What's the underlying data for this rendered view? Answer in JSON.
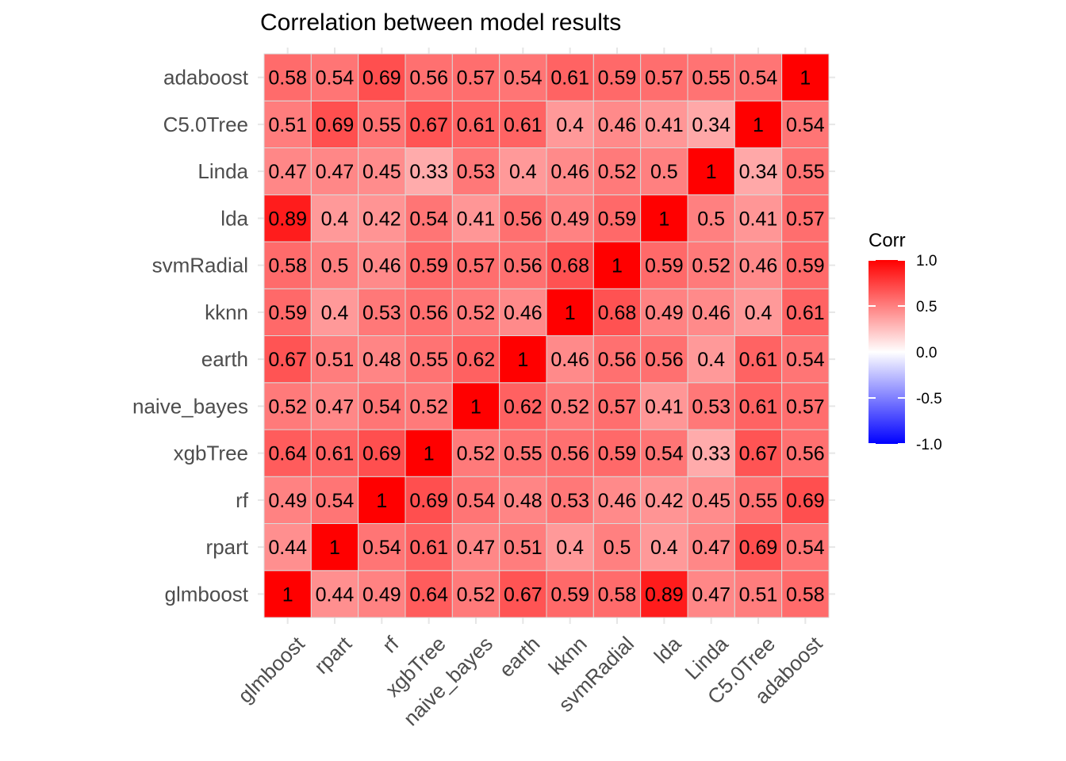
{
  "chart_data": {
    "type": "heatmap",
    "title": "Correlation between model results",
    "variables": [
      "glmboost",
      "rpart",
      "rf",
      "xgbTree",
      "naive_bayes",
      "earth",
      "kknn",
      "svmRadial",
      "lda",
      "Linda",
      "C5.0Tree",
      "adaboost"
    ],
    "matrix": [
      [
        1,
        0.44,
        0.49,
        0.64,
        0.52,
        0.67,
        0.59,
        0.58,
        0.89,
        0.47,
        0.51,
        0.58
      ],
      [
        0.44,
        1,
        0.54,
        0.61,
        0.47,
        0.51,
        0.4,
        0.5,
        0.4,
        0.47,
        0.69,
        0.54
      ],
      [
        0.49,
        0.54,
        1,
        0.69,
        0.54,
        0.48,
        0.53,
        0.46,
        0.42,
        0.45,
        0.55,
        0.69
      ],
      [
        0.64,
        0.61,
        0.69,
        1,
        0.52,
        0.55,
        0.56,
        0.59,
        0.54,
        0.33,
        0.67,
        0.56
      ],
      [
        0.52,
        0.47,
        0.54,
        0.52,
        1,
        0.62,
        0.52,
        0.57,
        0.41,
        0.53,
        0.61,
        0.57
      ],
      [
        0.67,
        0.51,
        0.48,
        0.55,
        0.62,
        1,
        0.46,
        0.56,
        0.56,
        0.4,
        0.61,
        0.54
      ],
      [
        0.59,
        0.4,
        0.53,
        0.56,
        0.52,
        0.46,
        1,
        0.68,
        0.49,
        0.46,
        0.4,
        0.61
      ],
      [
        0.58,
        0.5,
        0.46,
        0.59,
        0.57,
        0.56,
        0.68,
        1,
        0.59,
        0.52,
        0.46,
        0.59
      ],
      [
        0.89,
        0.4,
        0.42,
        0.54,
        0.41,
        0.56,
        0.49,
        0.59,
        1,
        0.5,
        0.41,
        0.57
      ],
      [
        0.47,
        0.47,
        0.45,
        0.33,
        0.53,
        0.4,
        0.46,
        0.52,
        0.5,
        1,
        0.34,
        0.55
      ],
      [
        0.51,
        0.69,
        0.55,
        0.67,
        0.61,
        0.61,
        0.4,
        0.46,
        0.41,
        0.34,
        1,
        0.54
      ],
      [
        0.58,
        0.54,
        0.69,
        0.56,
        0.57,
        0.54,
        0.61,
        0.59,
        0.57,
        0.55,
        0.54,
        1
      ]
    ],
    "labels": [
      [
        "1",
        "0.44",
        "0.49",
        "0.64",
        "0.52",
        "0.67",
        "0.59",
        "0.58",
        "0.89",
        "0.47",
        "0.51",
        "0.58"
      ],
      [
        "0.44",
        "1",
        "0.54",
        "0.61",
        "0.47",
        "0.51",
        "0.4",
        "0.5",
        "0.4",
        "0.47",
        "0.69",
        "0.54"
      ],
      [
        "0.49",
        "0.54",
        "1",
        "0.69",
        "0.54",
        "0.48",
        "0.53",
        "0.46",
        "0.42",
        "0.45",
        "0.55",
        "0.69"
      ],
      [
        "0.64",
        "0.61",
        "0.69",
        "1",
        "0.52",
        "0.55",
        "0.56",
        "0.59",
        "0.54",
        "0.33",
        "0.67",
        "0.56"
      ],
      [
        "0.52",
        "0.47",
        "0.54",
        "0.52",
        "1",
        "0.62",
        "0.52",
        "0.57",
        "0.41",
        "0.53",
        "0.61",
        "0.57"
      ],
      [
        "0.67",
        "0.51",
        "0.48",
        "0.55",
        "0.62",
        "1",
        "0.46",
        "0.56",
        "0.56",
        "0.4",
        "0.61",
        "0.54"
      ],
      [
        "0.59",
        "0.4",
        "0.53",
        "0.56",
        "0.52",
        "0.46",
        "1",
        "0.68",
        "0.49",
        "0.46",
        "0.4",
        "0.61"
      ],
      [
        "0.58",
        "0.5",
        "0.46",
        "0.59",
        "0.57",
        "0.56",
        "0.68",
        "1",
        "0.59",
        "0.52",
        "0.46",
        "0.59"
      ],
      [
        "0.89",
        "0.4",
        "0.42",
        "0.54",
        "0.41",
        "0.56",
        "0.49",
        "0.59",
        "1",
        "0.5",
        "0.41",
        "0.57"
      ],
      [
        "0.47",
        "0.47",
        "0.45",
        "0.33",
        "0.53",
        "0.4",
        "0.46",
        "0.52",
        "0.5",
        "1",
        "0.34",
        "0.55"
      ],
      [
        "0.51",
        "0.69",
        "0.55",
        "0.67",
        "0.61",
        "0.61",
        "0.4",
        "0.46",
        "0.41",
        "0.34",
        "1",
        "0.54"
      ],
      [
        "0.58",
        "0.54",
        "0.69",
        "0.56",
        "0.57",
        "0.54",
        "0.61",
        "0.59",
        "0.57",
        "0.55",
        "0.54",
        "1"
      ]
    ],
    "color_scale": {
      "limits": [
        -1,
        1
      ],
      "low": "#0000ff",
      "mid": "#ffffff",
      "high": "#ff0000"
    },
    "legend": {
      "title": "Corr",
      "ticks": [
        "1.0",
        "0.5",
        "0.0",
        "-0.5",
        "-1.0"
      ],
      "tick_values": [
        1,
        0.5,
        0,
        -0.5,
        -1
      ],
      "placement": "right"
    },
    "grid": true
  }
}
